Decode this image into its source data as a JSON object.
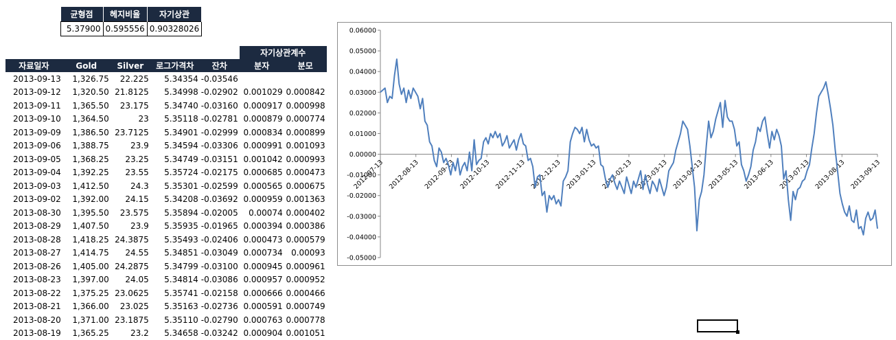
{
  "summary": {
    "headers": [
      "균형점",
      "헤지비율",
      "자기상관"
    ],
    "values": [
      "5.37900",
      "0.595556",
      "0.90328026"
    ]
  },
  "table": {
    "group_header": "자기상관계수",
    "headers": [
      "자료일자",
      "Gold",
      "Silver",
      "로그가격차",
      "잔차",
      "분자",
      "분모"
    ],
    "rows": [
      [
        "2013-09-13",
        "1,326.75",
        "22.225",
        "5.34354",
        "-0.03546",
        "",
        ""
      ],
      [
        "2013-09-12",
        "1,320.50",
        "21.8125",
        "5.34998",
        "-0.02902",
        "0.001029",
        "0.000842"
      ],
      [
        "2013-09-11",
        "1,365.50",
        "23.175",
        "5.34740",
        "-0.03160",
        "0.000917",
        "0.000998"
      ],
      [
        "2013-09-10",
        "1,364.50",
        "23",
        "5.35118",
        "-0.02781",
        "0.000879",
        "0.000774"
      ],
      [
        "2013-09-09",
        "1,386.50",
        "23.7125",
        "5.34901",
        "-0.02999",
        "0.000834",
        "0.000899"
      ],
      [
        "2013-09-06",
        "1,388.75",
        "23.9",
        "5.34594",
        "-0.03306",
        "0.000991",
        "0.001093"
      ],
      [
        "2013-09-05",
        "1,368.25",
        "23.25",
        "5.34749",
        "-0.03151",
        "0.001042",
        "0.000993"
      ],
      [
        "2013-09-04",
        "1,392.25",
        "23.55",
        "5.35724",
        "-0.02175",
        "0.000685",
        "0.000473"
      ],
      [
        "2013-09-03",
        "1,412.50",
        "24.3",
        "5.35301",
        "-0.02599",
        "0.000565",
        "0.000675"
      ],
      [
        "2013-09-02",
        "1,392.00",
        "24.15",
        "5.34208",
        "-0.03692",
        "0.000959",
        "0.001363"
      ],
      [
        "2013-08-30",
        "1,395.50",
        "23.575",
        "5.35894",
        "-0.02005",
        "0.00074",
        "0.000402"
      ],
      [
        "2013-08-29",
        "1,407.50",
        "23.9",
        "5.35935",
        "-0.01965",
        "0.000394",
        "0.000386"
      ],
      [
        "2013-08-28",
        "1,418.25",
        "24.3875",
        "5.35493",
        "-0.02406",
        "0.000473",
        "0.000579"
      ],
      [
        "2013-08-27",
        "1,414.75",
        "24.55",
        "5.34851",
        "-0.03049",
        "0.000734",
        "0.00093"
      ],
      [
        "2013-08-26",
        "1,405.00",
        "24.2875",
        "5.34799",
        "-0.03100",
        "0.000945",
        "0.000961"
      ],
      [
        "2013-08-23",
        "1,397.00",
        "24.05",
        "5.34814",
        "-0.03086",
        "0.000957",
        "0.000952"
      ],
      [
        "2013-08-22",
        "1,375.25",
        "23.0625",
        "5.35741",
        "-0.02158",
        "0.000666",
        "0.000466"
      ],
      [
        "2013-08-21",
        "1,366.00",
        "23.025",
        "5.35163",
        "-0.02736",
        "0.000591",
        "0.000749"
      ],
      [
        "2013-08-20",
        "1,371.00",
        "23.1875",
        "5.35110",
        "-0.02790",
        "0.000763",
        "0.000778"
      ],
      [
        "2013-08-19",
        "1,365.25",
        "23.2",
        "5.34658",
        "-0.03242",
        "0.000904",
        "0.001051"
      ]
    ]
  },
  "chart_data": {
    "type": "line",
    "title": "",
    "xlabel": "",
    "ylabel": "",
    "ylim": [
      -0.05,
      0.06
    ],
    "yticks": [
      "0.06000",
      "0.05000",
      "0.04000",
      "0.03000",
      "0.02000",
      "0.01000",
      "0.00000",
      "-0.01000",
      "-0.02000",
      "-0.03000",
      "-0.04000",
      "-0.05000"
    ],
    "xticks": [
      "2012-07-13",
      "2012-08-13",
      "2012-09-13",
      "2012-10-13",
      "2012-11-13",
      "2012-12-13",
      "2013-01-13",
      "2013-02-13",
      "2013-03-13",
      "2013-04-13",
      "2013-05-13",
      "2013-06-13",
      "2013-07-13",
      "2013-08-13",
      "2013-09-13"
    ],
    "color": "#4f7fbd",
    "series": [
      {
        "values": [
          0.03,
          0.031,
          0.032,
          0.025,
          0.028,
          0.027,
          0.038,
          0.046,
          0.034,
          0.029,
          0.032,
          0.025,
          0.031,
          0.027,
          0.032,
          0.03,
          0.028,
          0.022,
          0.027,
          0.016,
          0.014,
          0.006,
          0.004,
          -0.003,
          -0.006,
          0.003,
          0.001,
          -0.004,
          -0.002,
          -0.005,
          -0.01,
          -0.004,
          -0.008,
          -0.002,
          -0.01,
          -0.006,
          -0.004,
          -0.008,
          0.001,
          -0.008,
          0.007,
          -0.005,
          -0.003,
          -0.002,
          0.006,
          0.008,
          0.005,
          0.01,
          0.008,
          0.011,
          0.008,
          0.01,
          0.004,
          0.006,
          0.009,
          0.003,
          0.005,
          0.007,
          0.002,
          0.007,
          0.01,
          0.005,
          0.004,
          -0.003,
          -0.002,
          -0.006,
          -0.016,
          -0.011,
          -0.01,
          -0.02,
          -0.018,
          -0.028,
          -0.02,
          -0.022,
          -0.02,
          -0.024,
          -0.022,
          -0.025,
          -0.013,
          -0.011,
          -0.008,
          0.006,
          0.01,
          0.013,
          0.012,
          0.01,
          0.013,
          0.006,
          0.012,
          0.007,
          0.004,
          0.005,
          0.003,
          0.004,
          -0.005,
          -0.006,
          -0.012,
          -0.016,
          -0.012,
          -0.01,
          -0.014,
          -0.017,
          -0.013,
          -0.016,
          -0.019,
          -0.011,
          -0.015,
          -0.019,
          -0.013,
          -0.016,
          -0.012,
          -0.008,
          -0.017,
          -0.01,
          -0.015,
          -0.019,
          -0.013,
          -0.015,
          -0.018,
          -0.012,
          -0.016,
          -0.02,
          -0.016,
          -0.008,
          -0.006,
          -0.004,
          0.002,
          0.006,
          0.01,
          0.016,
          0.014,
          0.012,
          0.004,
          -0.006,
          -0.016,
          -0.037,
          -0.022,
          -0.018,
          -0.01,
          0.004,
          0.016,
          0.008,
          0.011,
          0.017,
          0.021,
          0.025,
          0.013,
          0.026,
          0.018,
          0.016,
          0.016,
          0.012,
          0.004,
          0.006,
          -0.005,
          -0.008,
          -0.013,
          -0.01,
          -0.006,
          0.002,
          0.006,
          0.013,
          0.011,
          0.016,
          0.018,
          0.01,
          0.003,
          0.011,
          0.007,
          0.012,
          0.009,
          0.004,
          -0.012,
          -0.008,
          -0.022,
          -0.032,
          -0.018,
          -0.022,
          -0.017,
          -0.016,
          -0.013,
          -0.012,
          -0.008,
          -0.005,
          0.003,
          0.01,
          0.02,
          0.028,
          0.03,
          0.032,
          0.035,
          0.029,
          0.022,
          0.014,
          0.002,
          -0.008,
          -0.019,
          -0.024,
          -0.028,
          -0.03,
          -0.025,
          -0.032,
          -0.033,
          -0.027,
          -0.036,
          -0.035,
          -0.039,
          -0.031,
          -0.028,
          -0.032,
          -0.031,
          -0.027,
          -0.036
        ]
      }
    ]
  }
}
